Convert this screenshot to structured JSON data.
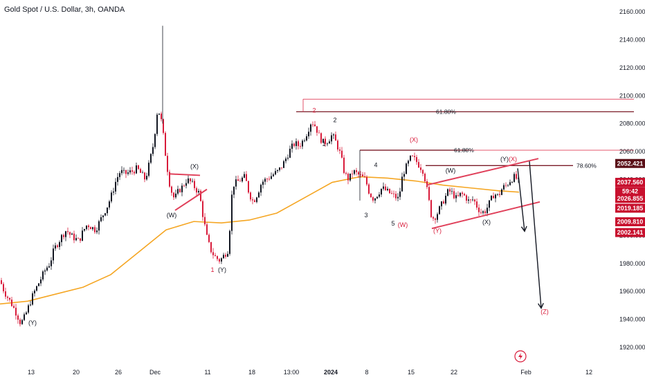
{
  "header": {
    "title": "Gold Spot / U.S. Dollar, 3h, OANDA"
  },
  "colors": {
    "candle_up": "#131722",
    "candle_down": "#d81b3a",
    "ma": "#f5a623",
    "red_line": "#e0405a",
    "fib_line": "#7a1a26",
    "tag_red": "#c8102e",
    "tag_dark": "#5a0f17"
  },
  "chart_data": {
    "type": "candlestick",
    "instrument": "Gold Spot / U.S. Dollar",
    "interval": "3h",
    "source": "OANDA",
    "ylim": [
      1910,
      2170
    ],
    "yticks": [
      "2160.000",
      "2140.000",
      "2120.000",
      "2100.000",
      "2080.000",
      "2060.000",
      "2040.000",
      "2020.000",
      "2000.000",
      "1980.000",
      "1960.000",
      "1940.000",
      "1920.000"
    ],
    "xticks": [
      "13",
      "20",
      "26",
      "Dec",
      "11",
      "18",
      "13:00",
      "2024",
      "8",
      "15",
      "22",
      "Feb",
      "12"
    ],
    "close_path": [
      [
        0,
        1968
      ],
      [
        6,
        1960
      ],
      [
        12,
        1955
      ],
      [
        18,
        1950
      ],
      [
        24,
        1944
      ],
      [
        30,
        1937
      ],
      [
        36,
        1942
      ],
      [
        42,
        1950
      ],
      [
        48,
        1958
      ],
      [
        54,
        1964
      ],
      [
        60,
        1970
      ],
      [
        66,
        1976
      ],
      [
        72,
        1980
      ],
      [
        78,
        1990
      ],
      [
        84,
        1995
      ],
      [
        90,
        2000
      ],
      [
        96,
        2004
      ],
      [
        102,
        2000
      ],
      [
        108,
        1998
      ],
      [
        114,
        1996
      ],
      [
        120,
        2003
      ],
      [
        126,
        2008
      ],
      [
        132,
        2006
      ],
      [
        138,
        2004
      ],
      [
        144,
        2010
      ],
      [
        150,
        2016
      ],
      [
        156,
        2022
      ],
      [
        162,
        2030
      ],
      [
        168,
        2040
      ],
      [
        174,
        2046
      ],
      [
        180,
        2044
      ],
      [
        186,
        2045
      ],
      [
        192,
        2046
      ],
      [
        198,
        2048
      ],
      [
        204,
        2044
      ],
      [
        210,
        2040
      ],
      [
        216,
        2052
      ],
      [
        222,
        2066
      ],
      [
        228,
        2092
      ],
      [
        234,
        2080
      ],
      [
        240,
        2054
      ],
      [
        246,
        2034
      ],
      [
        252,
        2026
      ],
      [
        258,
        2032
      ],
      [
        264,
        2035
      ],
      [
        270,
        2040
      ],
      [
        276,
        2038
      ],
      [
        282,
        2034
      ],
      [
        288,
        2030
      ],
      [
        294,
        2012
      ],
      [
        300,
        1996
      ],
      [
        306,
        1988
      ],
      [
        312,
        1984
      ],
      [
        318,
        1982
      ],
      [
        324,
        1986
      ],
      [
        330,
        1990
      ],
      [
        336,
        2036
      ],
      [
        342,
        2038
      ],
      [
        348,
        2040
      ],
      [
        354,
        2042
      ],
      [
        360,
        2030
      ],
      [
        366,
        2024
      ],
      [
        372,
        2030
      ],
      [
        378,
        2038
      ],
      [
        384,
        2040
      ],
      [
        390,
        2042
      ],
      [
        396,
        2044
      ],
      [
        402,
        2046
      ],
      [
        408,
        2050
      ],
      [
        414,
        2056
      ],
      [
        420,
        2062
      ],
      [
        426,
        2066
      ],
      [
        432,
        2064
      ],
      [
        438,
        2068
      ],
      [
        444,
        2074
      ],
      [
        450,
        2082
      ],
      [
        456,
        2078
      ],
      [
        462,
        2070
      ],
      [
        468,
        2066
      ],
      [
        474,
        2068
      ],
      [
        480,
        2072
      ],
      [
        486,
        2066
      ],
      [
        492,
        2058
      ],
      [
        498,
        2044
      ],
      [
        504,
        2040
      ],
      [
        510,
        2046
      ],
      [
        516,
        2044
      ],
      [
        522,
        2042
      ],
      [
        528,
        2040
      ],
      [
        534,
        2030
      ],
      [
        540,
        2026
      ],
      [
        546,
        2030
      ],
      [
        552,
        2034
      ],
      [
        558,
        2032
      ],
      [
        564,
        2030
      ],
      [
        570,
        2028
      ],
      [
        576,
        2026
      ],
      [
        582,
        2044
      ],
      [
        588,
        2050
      ],
      [
        594,
        2056
      ],
      [
        600,
        2054
      ],
      [
        606,
        2050
      ],
      [
        612,
        2046
      ],
      [
        618,
        2030
      ],
      [
        624,
        2012
      ],
      [
        630,
        2014
      ],
      [
        636,
        2020
      ],
      [
        642,
        2026
      ],
      [
        648,
        2032
      ],
      [
        654,
        2030
      ],
      [
        660,
        2026
      ],
      [
        666,
        2030
      ],
      [
        672,
        2028
      ],
      [
        678,
        2024
      ],
      [
        684,
        2026
      ],
      [
        690,
        2020
      ],
      [
        696,
        2016
      ],
      [
        702,
        2018
      ],
      [
        708,
        2024
      ],
      [
        714,
        2030
      ],
      [
        720,
        2028
      ],
      [
        726,
        2034
      ],
      [
        732,
        2036
      ],
      [
        738,
        2040
      ],
      [
        744,
        2042
      ],
      [
        750,
        2038
      ]
    ],
    "moving_average": [
      [
        0,
        1951
      ],
      [
        40,
        1953
      ],
      [
        80,
        1958
      ],
      [
        120,
        1963
      ],
      [
        160,
        1972
      ],
      [
        200,
        1988
      ],
      [
        240,
        2004
      ],
      [
        280,
        2010
      ],
      [
        320,
        2009
      ],
      [
        360,
        2011
      ],
      [
        400,
        2016
      ],
      [
        440,
        2027
      ],
      [
        480,
        2038
      ],
      [
        520,
        2042
      ],
      [
        560,
        2041
      ],
      [
        600,
        2039
      ],
      [
        640,
        2036
      ],
      [
        680,
        2034
      ],
      [
        720,
        2032
      ],
      [
        750,
        2031
      ]
    ],
    "horizontal_levels": [
      {
        "from_x": 438,
        "to_x": 916,
        "y": 2097.5,
        "color": "red_line"
      },
      {
        "from_x": 428,
        "to_x": 916,
        "y": 2088.5,
        "color": "fib_line",
        "label": "61.80%"
      },
      {
        "from_x": 520,
        "to_x": 916,
        "y": 2061,
        "color": "red_line"
      },
      {
        "from_x": 520,
        "to_x": 676,
        "y": 2061,
        "color": "fib_line",
        "label": "61.80%"
      },
      {
        "from_x": 615,
        "to_x": 828,
        "y": 2050,
        "color": "fib_line",
        "label": "78.60%"
      }
    ],
    "trend_lines": [
      {
        "x1": 246,
        "y1": 2044,
        "x2": 289,
        "y2": 2043
      },
      {
        "x1": 253,
        "y1": 2018,
        "x2": 299,
        "y2": 2033
      },
      {
        "x1": 616,
        "y1": 2036,
        "x2": 778,
        "y2": 2055
      },
      {
        "x1": 624,
        "y1": 2005,
        "x2": 780,
        "y2": 2024
      }
    ],
    "projection_arrows": [
      {
        "x1": 748,
        "y1": 2048,
        "x2": 758,
        "y2": 2003
      },
      {
        "x1": 765,
        "y1": 2053,
        "x2": 782,
        "y2": 1948
      }
    ],
    "wave_labels": [
      {
        "x": 47,
        "y": 1936,
        "text": "(Y)",
        "color": "black"
      },
      {
        "x": 281,
        "y": 2048,
        "text": "(X)",
        "color": "black"
      },
      {
        "x": 248,
        "y": 2013,
        "text": "(W)",
        "color": "black"
      },
      {
        "x": 307,
        "y": 1974,
        "text": "1",
        "color": "red"
      },
      {
        "x": 321,
        "y": 1974,
        "text": "(Y)",
        "color": "black"
      },
      {
        "x": 454,
        "y": 2088,
        "text": "2",
        "color": "red"
      },
      {
        "x": 484,
        "y": 2081,
        "text": "2",
        "color": "black"
      },
      {
        "x": 468,
        "y": 2064,
        "text": "1",
        "color": "black"
      },
      {
        "x": 543,
        "y": 2049,
        "text": "4",
        "color": "black"
      },
      {
        "x": 529,
        "y": 2013,
        "text": "3",
        "color": "black"
      },
      {
        "x": 568,
        "y": 2007,
        "text": "5",
        "color": "black"
      },
      {
        "x": 582,
        "y": 2006,
        "text": "(W)",
        "color": "red"
      },
      {
        "x": 598,
        "y": 2067,
        "text": "(X)",
        "color": "red"
      },
      {
        "x": 651,
        "y": 2045,
        "text": "(W)",
        "color": "black"
      },
      {
        "x": 729,
        "y": 2053,
        "text": "(Y)",
        "color": "black"
      },
      {
        "x": 741,
        "y": 2053,
        "text": "(X)",
        "color": "red"
      },
      {
        "x": 632,
        "y": 2002,
        "text": "(Y)",
        "color": "red"
      },
      {
        "x": 703,
        "y": 2008,
        "text": "(X)",
        "color": "black"
      },
      {
        "x": 787,
        "y": 1944,
        "text": "(Z)",
        "color": "red"
      }
    ],
    "fib_labels": [
      {
        "text": "61.80%"
      },
      {
        "text": "61.80%"
      },
      {
        "text": "78.60%"
      }
    ],
    "price_tags": [
      {
        "value": "2052.421",
        "y": 2051.5,
        "color": "tag_dark"
      },
      {
        "value": "2037.560",
        "y": 2038,
        "color": "tag_red"
      },
      {
        "value": "59:42",
        "y": 2031.5,
        "color": "tag_red"
      },
      {
        "value": "2026.855",
        "y": 2026.5,
        "color": "tag_red"
      },
      {
        "value": "2019.185",
        "y": 2019.5,
        "color": "tag_red"
      },
      {
        "value": "2009.810",
        "y": 2009.8,
        "color": "tag_red"
      },
      {
        "value": "2002.141",
        "y": 2002.1,
        "color": "tag_red"
      }
    ]
  }
}
